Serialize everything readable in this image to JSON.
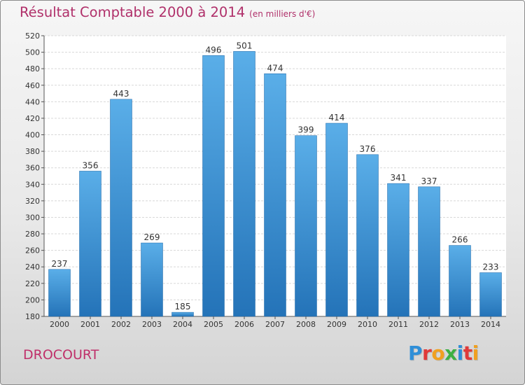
{
  "header": {
    "title": "Résultat Comptable 2000 à 2014",
    "subtitle": "(en milliers d'€)"
  },
  "footer": {
    "town": "DROCOURT",
    "logo_letters": [
      "P",
      "r",
      "o",
      "x",
      "i",
      "t",
      "i"
    ]
  },
  "colors": {
    "title": "#b0306a",
    "bar_top": "#5aaee8",
    "bar_bottom": "#2473b8",
    "logo": [
      "#2f8fd8",
      "#e03a3a",
      "#f0a020",
      "#3cb043",
      "#2f8fd8",
      "#e03a3a",
      "#f0a020"
    ]
  },
  "chart_data": {
    "type": "bar",
    "title": "Résultat Comptable 2000 à 2014",
    "ylabel": "en milliers d'€",
    "xlabel": "",
    "categories": [
      "2000",
      "2001",
      "2002",
      "2003",
      "2004",
      "2005",
      "2006",
      "2007",
      "2008",
      "2009",
      "2010",
      "2011",
      "2012",
      "2013",
      "2014"
    ],
    "values": [
      237,
      356,
      443,
      269,
      185,
      496,
      501,
      474,
      399,
      414,
      376,
      341,
      337,
      266,
      233
    ],
    "ylim": [
      180,
      520
    ],
    "yticks": [
      180,
      200,
      220,
      240,
      260,
      280,
      300,
      320,
      340,
      360,
      380,
      400,
      420,
      440,
      460,
      480,
      500,
      520
    ],
    "grid": true
  }
}
